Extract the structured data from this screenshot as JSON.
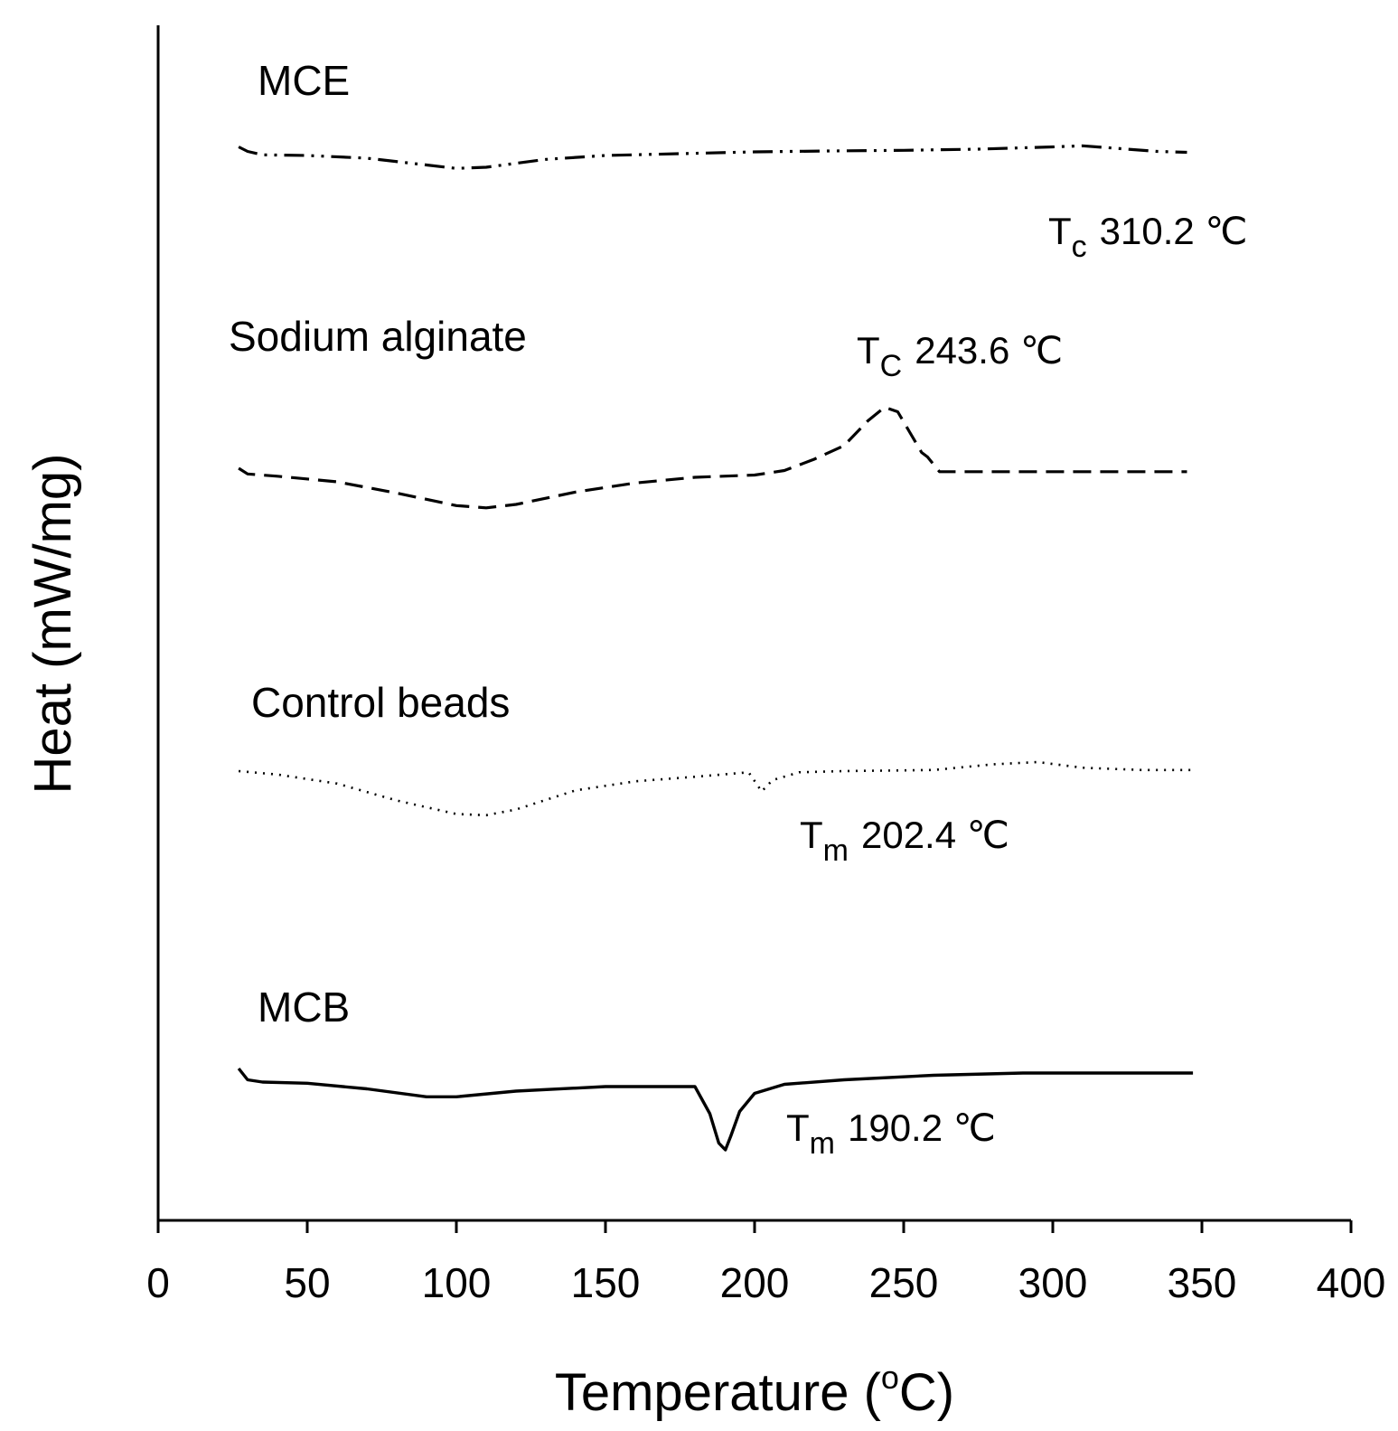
{
  "chart_data": {
    "type": "line",
    "title": "",
    "xlabel": "Temperature (°C)",
    "xlabel_parts": {
      "prefix": "Temperature (",
      "degree": "o",
      "suffix": "C)"
    },
    "ylabel": "Heat (mW/mg)",
    "xlim": [
      0,
      400
    ],
    "xticks": [
      0,
      50,
      100,
      150,
      200,
      250,
      300,
      350,
      400
    ],
    "grid": false,
    "yaxis_scale": "arbitrary offset units (no y ticks)",
    "series": [
      {
        "name": "MCE",
        "style": "dash-dot-dot",
        "x": [
          27,
          30,
          35,
          50,
          70,
          90,
          100,
          110,
          130,
          150,
          175,
          200,
          225,
          250,
          275,
          300,
          310,
          325,
          335,
          345
        ],
        "y": [
          3.3,
          3.1,
          2.95,
          2.92,
          2.8,
          2.5,
          2.35,
          2.4,
          2.75,
          2.92,
          3.0,
          3.08,
          3.12,
          3.15,
          3.2,
          3.3,
          3.35,
          3.2,
          3.1,
          3.06
        ]
      },
      {
        "name": "Sodium alginate",
        "style": "dashed",
        "x": [
          27,
          30,
          40,
          60,
          80,
          100,
          110,
          120,
          140,
          160,
          180,
          200,
          210,
          220,
          230,
          238,
          243.6,
          248,
          252,
          256,
          258,
          262,
          270,
          290,
          310,
          330,
          345
        ],
        "y": [
          3.2,
          2.95,
          2.85,
          2.6,
          2.1,
          1.55,
          1.45,
          1.6,
          2.15,
          2.55,
          2.8,
          2.9,
          3.1,
          3.6,
          4.2,
          5.3,
          5.9,
          5.7,
          4.8,
          3.9,
          3.7,
          3.05,
          3.05,
          3.05,
          3.05,
          3.05,
          3.05
        ]
      },
      {
        "name": "Control beads",
        "style": "dotted",
        "x": [
          27,
          40,
          60,
          80,
          100,
          110,
          120,
          140,
          160,
          180,
          198,
          202.4,
          206,
          215,
          230,
          260,
          280,
          295,
          310,
          330,
          347
        ],
        "y": [
          3.0,
          2.85,
          2.45,
          1.7,
          1.1,
          1.05,
          1.3,
          2.15,
          2.55,
          2.75,
          2.95,
          2.1,
          2.6,
          2.95,
          3.0,
          3.05,
          3.3,
          3.4,
          3.15,
          3.05,
          3.05
        ]
      },
      {
        "name": "MCB",
        "style": "solid",
        "x": [
          27,
          30,
          35,
          50,
          70,
          90,
          100,
          120,
          150,
          180,
          185,
          188,
          190.2,
          192,
          195,
          200,
          210,
          230,
          260,
          290,
          320,
          347
        ],
        "y": [
          3.6,
          3.1,
          3.0,
          2.95,
          2.7,
          2.35,
          2.35,
          2.6,
          2.8,
          2.8,
          1.6,
          0.3,
          0.0,
          0.6,
          1.7,
          2.5,
          2.9,
          3.1,
          3.3,
          3.4,
          3.4,
          3.4
        ]
      }
    ],
    "annotations": [
      {
        "series": "MCE",
        "symbol": "T",
        "sub": "c",
        "text": "310.2 ℃"
      },
      {
        "series": "Sodium alginate",
        "symbol": "T",
        "sub": "C",
        "text": "243.6 ℃"
      },
      {
        "series": "Control beads",
        "symbol": "T",
        "sub": "m",
        "text": "202.4 ℃"
      },
      {
        "series": "MCB",
        "symbol": "T",
        "sub": "m",
        "text": "190.2 ℃"
      }
    ]
  }
}
